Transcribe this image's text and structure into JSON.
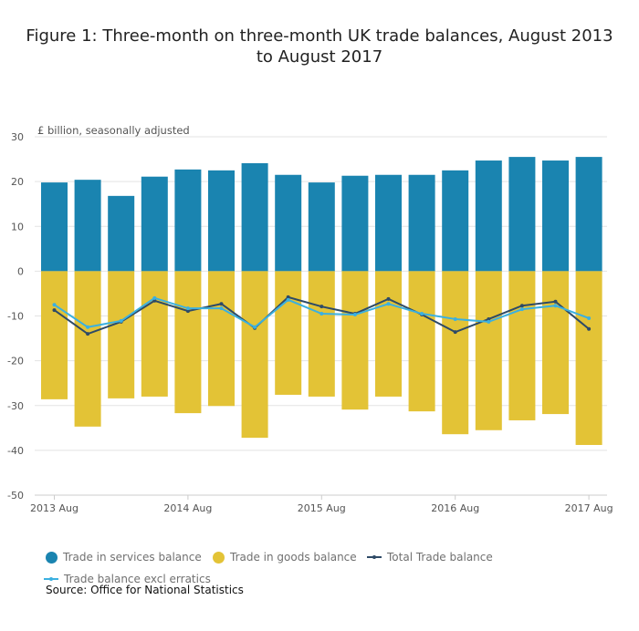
{
  "chart_data": {
    "type": "bar",
    "title": "Figure 1: Three-month on three-month UK trade balances, August 2013 to August 2017",
    "ylabel": "£ billion, seasonally adjusted",
    "ylim": [
      -50,
      30
    ],
    "yticks": [
      30,
      20,
      10,
      0,
      -10,
      -20,
      -30,
      -40,
      -50
    ],
    "grid": true,
    "stacked": true,
    "legend_position": "bottom",
    "x_tick_labels": [
      {
        "index": 0,
        "label": "2013 Aug"
      },
      {
        "index": 4,
        "label": "2014 Aug"
      },
      {
        "index": 8,
        "label": "2015 Aug"
      },
      {
        "index": 12,
        "label": "2016 Aug"
      },
      {
        "index": 16,
        "label": "2017 Aug"
      }
    ],
    "series": [
      {
        "name": "Trade in services balance",
        "kind": "bar",
        "color": "#1a84b0",
        "values": [
          19.8,
          20.4,
          16.8,
          21.1,
          22.7,
          22.5,
          24.1,
          21.5,
          19.8,
          21.3,
          21.5,
          21.5,
          22.5,
          24.7,
          25.5,
          24.7,
          25.5
        ]
      },
      {
        "name": "Trade in goods balance",
        "kind": "bar",
        "color": "#e3c336",
        "values": [
          -28.6,
          -34.7,
          -28.4,
          -28.0,
          -31.7,
          -30.1,
          -37.2,
          -27.6,
          -28.0,
          -30.9,
          -28.0,
          -31.3,
          -36.4,
          -35.5,
          -33.3,
          -31.9,
          -38.8
        ]
      },
      {
        "name": "Total Trade balance",
        "kind": "line",
        "color": "#2e4a66",
        "values": [
          -8.7,
          -14.0,
          -11.3,
          -6.6,
          -8.9,
          -7.3,
          -12.7,
          -5.8,
          -7.9,
          -9.5,
          -6.2,
          -9.7,
          -13.6,
          -10.7,
          -7.7,
          -6.8,
          -12.9
        ]
      },
      {
        "name": "Trade balance excl erratics",
        "kind": "line",
        "color": "#3bb0e0",
        "values": [
          -7.5,
          -12.5,
          -11.1,
          -6.0,
          -8.3,
          -8.3,
          -12.5,
          -6.4,
          -9.5,
          -9.7,
          -7.3,
          -9.5,
          -10.7,
          -11.3,
          -8.5,
          -7.7,
          -10.5
        ]
      }
    ]
  },
  "source": "Source: Office for National Statistics"
}
